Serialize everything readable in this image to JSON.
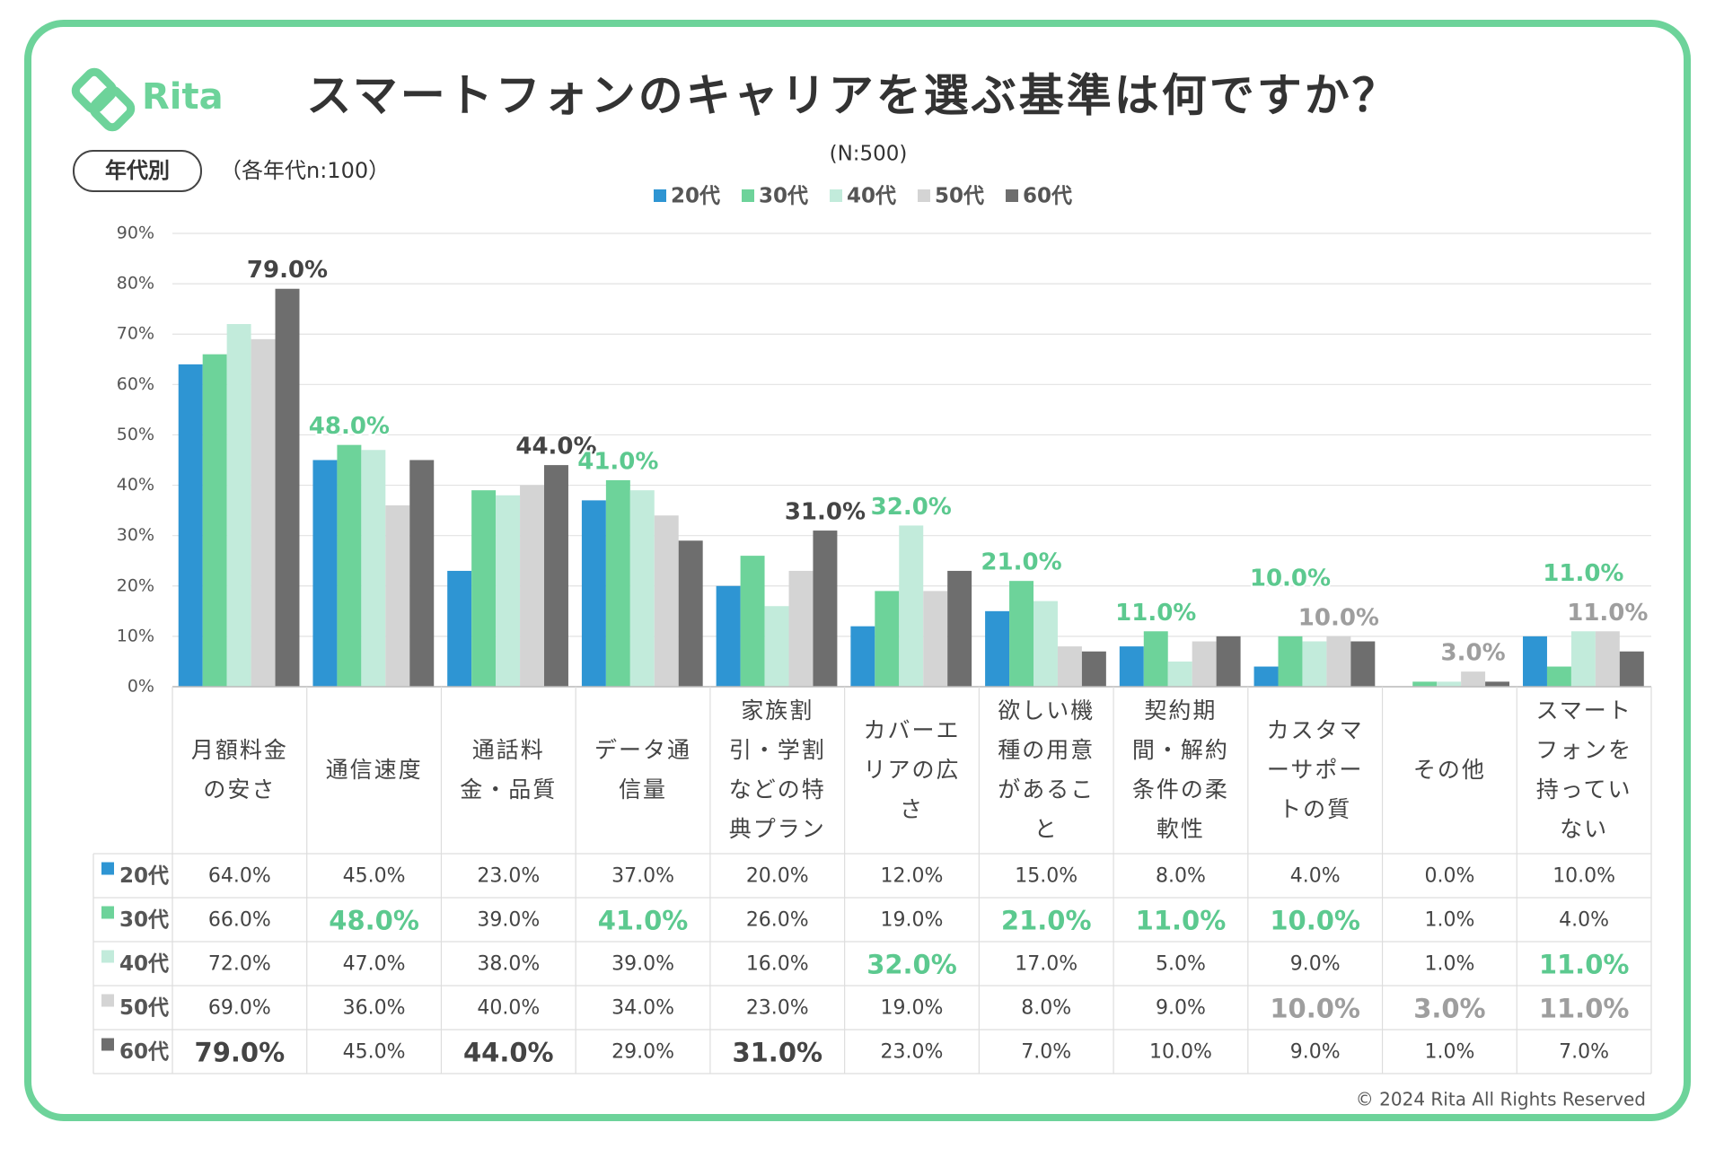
{
  "chart_data": {
    "type": "bar",
    "brand": "Rita",
    "title": "スマートフォンのキャリアを選ぶ基準は何ですか？",
    "subtitle": "(N:500)",
    "group_label": "年代別",
    "sample_note": "（各年代n:100）",
    "copyright": "© 2024 Rita All Rights Reserved",
    "categories": [
      "月額料金の安さ",
      "通信速度",
      "通話料金・品質",
      "データ通信量",
      "家族割引・学割などの特典プラン",
      "カバーエリアの広さ",
      "欲しい機種の用意があること",
      "契約期間・解約条件の柔軟性",
      "カスタマーサポートの質",
      "その他",
      "スマートフォンを持っていない"
    ],
    "series": [
      {
        "name": "20代",
        "color": "#2e95d3",
        "label_color": "#2e95d3",
        "values": [
          64,
          45,
          23,
          37,
          20,
          12,
          15,
          8,
          4,
          0,
          10
        ],
        "value_labels": [
          "64.0%",
          "45.0%",
          "23.0%",
          "37.0%",
          "20.0%",
          "12.0%",
          "15.0%",
          "8.0%",
          "4.0%",
          "0.0%",
          "10.0%"
        ]
      },
      {
        "name": "30代",
        "color": "#6dd39a",
        "label_color": "#5cc98f",
        "values": [
          66,
          48,
          39,
          41,
          26,
          19,
          21,
          11,
          10,
          1,
          4
        ],
        "value_labels": [
          "66.0%",
          "48.0%",
          "39.0%",
          "41.0%",
          "26.0%",
          "19.0%",
          "21.0%",
          "11.0%",
          "10.0%",
          "1.0%",
          "4.0%"
        ]
      },
      {
        "name": "40代",
        "color": "#c2ebdb",
        "label_color": "#5cc98f",
        "values": [
          72,
          47,
          38,
          39,
          16,
          32,
          17,
          5,
          9,
          1,
          11
        ],
        "value_labels": [
          "72.0%",
          "47.0%",
          "38.0%",
          "39.0%",
          "16.0%",
          "32.0%",
          "17.0%",
          "5.0%",
          "9.0%",
          "1.0%",
          "11.0%"
        ]
      },
      {
        "name": "50代",
        "color": "#d4d4d4",
        "label_color": "#9e9e9e",
        "values": [
          69,
          36,
          40,
          34,
          23,
          19,
          8,
          9,
          10,
          3,
          11
        ],
        "value_labels": [
          "69.0%",
          "36.0%",
          "40.0%",
          "34.0%",
          "23.0%",
          "19.0%",
          "8.0%",
          "9.0%",
          "10.0%",
          "3.0%",
          "11.0%"
        ]
      },
      {
        "name": "60代",
        "color": "#6e6e6e",
        "label_color": "#444444",
        "values": [
          79,
          45,
          44,
          29,
          31,
          23,
          7,
          10,
          9,
          1,
          7
        ],
        "value_labels": [
          "79.0%",
          "45.0%",
          "44.0%",
          "29.0%",
          "31.0%",
          "23.0%",
          "7.0%",
          "10.0%",
          "9.0%",
          "1.0%",
          "7.0%"
        ]
      }
    ],
    "ylim": [
      0,
      90
    ],
    "yticks": [
      {
        "value": 0,
        "label": "0%"
      },
      {
        "value": 10,
        "label": "10%"
      },
      {
        "value": 20,
        "label": "20%"
      },
      {
        "value": 30,
        "label": "30%"
      },
      {
        "value": 40,
        "label": "40%"
      },
      {
        "value": 50,
        "label": "50%"
      },
      {
        "value": 60,
        "label": "60%"
      },
      {
        "value": 70,
        "label": "70%"
      },
      {
        "value": 80,
        "label": "80%"
      },
      {
        "value": 90,
        "label": "90%"
      }
    ],
    "grid": true
  }
}
